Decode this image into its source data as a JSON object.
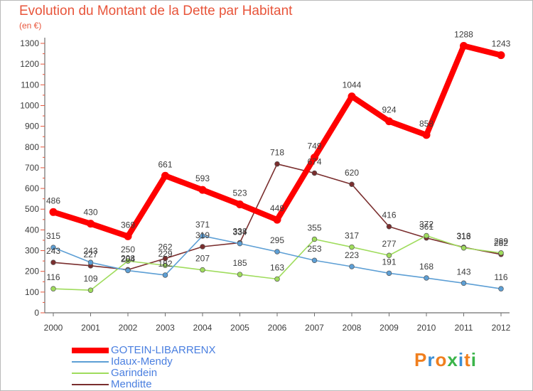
{
  "header": {
    "title": "Evolution du Montant de la Dette par Habitant",
    "subtitle": "(en €)"
  },
  "brand": {
    "name": "Proxiti",
    "colors": [
      "#f07f1e",
      "#3a8fd6",
      "#f07f1e",
      "#3bb44a",
      "#3a8fd6",
      "#f07f1e",
      "#3bb44a"
    ]
  },
  "colors": {
    "title": "#e8553b",
    "legend_text": "#4a7fe0",
    "axis_tick_marks": "#e8553b"
  },
  "chart_data": {
    "type": "line",
    "x": [
      "2000",
      "2001",
      "2002",
      "2003",
      "2004",
      "2005",
      "2006",
      "2007",
      "2008",
      "2009",
      "2010",
      "2011",
      "2012"
    ],
    "ylim": [
      0,
      1300
    ],
    "yticks": [
      0,
      100,
      200,
      300,
      400,
      500,
      600,
      700,
      800,
      900,
      1000,
      1100,
      1200,
      1300
    ],
    "grid": false,
    "legend_position": "bottom-left",
    "series": [
      {
        "name": "Menditte",
        "color": "#7a2e2e",
        "values": [
          243,
          227,
          208,
          262,
          319,
          338,
          718,
          674,
          620,
          416,
          361,
          316,
          282
        ]
      },
      {
        "name": "Garindein",
        "color": "#9fdc5c",
        "values": [
          116,
          109,
          250,
          229,
          207,
          185,
          163,
          355,
          317,
          277,
          372,
          313,
          289
        ]
      },
      {
        "name": "Idaux-Mendy",
        "color": "#5d9fd5",
        "values": [
          315,
          243,
          204,
          182,
          371,
          334,
          295,
          253,
          223,
          191,
          168,
          143,
          116
        ]
      },
      {
        "name": "GOTEIN-LIBARRENX",
        "color": "#ff0000",
        "values": [
          486,
          430,
          369,
          661,
          593,
          523,
          449,
          749,
          1044,
          924,
          858,
          1288,
          1243
        ]
      }
    ],
    "legend_order": [
      "GOTEIN-LIBARRENX",
      "Idaux-Mendy",
      "Garindein",
      "Menditte"
    ]
  }
}
